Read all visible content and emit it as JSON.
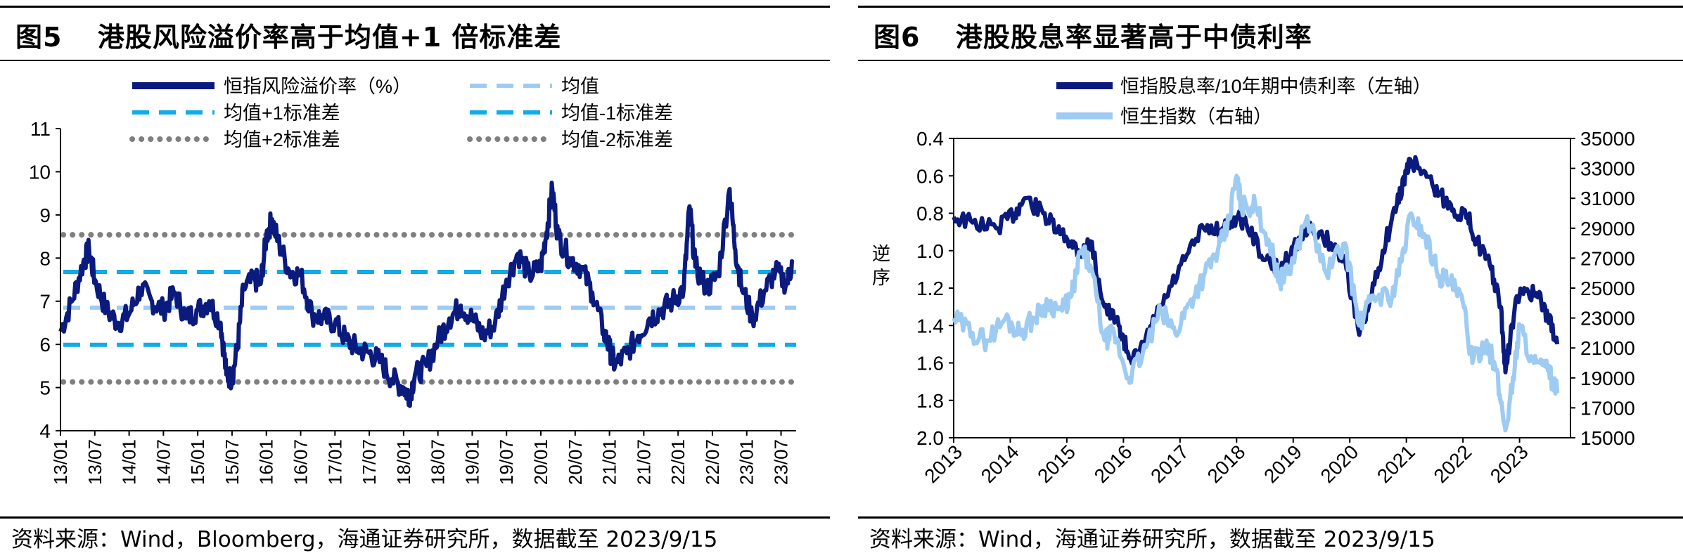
{
  "left": {
    "title_num": "图5",
    "title_text": "港股风险溢价率高于均值+1 倍标准差",
    "source": "资料来源：Wind，Bloomberg，海通证券研究所，数据截至 2023/9/15"
  },
  "right": {
    "title_num": "图6",
    "title_text": "港股股息率显著高于中债利率",
    "source": "资料来源：Wind，海通证券研究所，数据截至 2023/9/15"
  },
  "colors": {
    "dark_navy": "#0a1a7d",
    "light_blue": "#9ecbf2",
    "cyan": "#12abe5",
    "gray_dot": "#7f7f7f"
  },
  "chart_data": [
    {
      "type": "line",
      "xlabel": "",
      "ylabel": "",
      "ylim": [
        4,
        11
      ],
      "yticks": [
        "4",
        "5",
        "6",
        "7",
        "8",
        "9",
        "10",
        "11"
      ],
      "xticks": [
        "13/01",
        "13/07",
        "14/01",
        "14/07",
        "15/01",
        "15/07",
        "16/01",
        "16/07",
        "17/01",
        "17/07",
        "18/01",
        "18/07",
        "19/01",
        "19/07",
        "20/01",
        "20/07",
        "21/01",
        "21/07",
        "22/01",
        "22/07",
        "23/01",
        "23/07"
      ],
      "grid": false,
      "legend_position": "top",
      "series": [
        {
          "name": "恒指风险溢价率（%）",
          "style": "solid",
          "points": [
            [
              "2013-01",
              6.3
            ],
            [
              "2013-03",
              7.0
            ],
            [
              "2013-05",
              7.9
            ],
            [
              "2013-06",
              8.2
            ],
            [
              "2013-07",
              7.5
            ],
            [
              "2013-09",
              6.8
            ],
            [
              "2013-11",
              6.5
            ],
            [
              "2014-01",
              6.7
            ],
            [
              "2014-03",
              7.3
            ],
            [
              "2014-05",
              7.0
            ],
            [
              "2014-07",
              6.8
            ],
            [
              "2014-09",
              7.2
            ],
            [
              "2014-11",
              6.6
            ],
            [
              "2015-01",
              6.8
            ],
            [
              "2015-03",
              7.0
            ],
            [
              "2015-05",
              6.5
            ],
            [
              "2015-06",
              5.3
            ],
            [
              "2015-07",
              5.2
            ],
            [
              "2015-08",
              6.0
            ],
            [
              "2015-09",
              7.3
            ],
            [
              "2015-11",
              7.5
            ],
            [
              "2015-12",
              7.4
            ],
            [
              "2016-01",
              8.5
            ],
            [
              "2016-02",
              8.9
            ],
            [
              "2016-03",
              8.4
            ],
            [
              "2016-05",
              7.7
            ],
            [
              "2016-07",
              7.6
            ],
            [
              "2016-09",
              6.7
            ],
            [
              "2016-11",
              6.6
            ],
            [
              "2017-01",
              6.5
            ],
            [
              "2017-03",
              6.1
            ],
            [
              "2017-05",
              5.9
            ],
            [
              "2017-07",
              5.8
            ],
            [
              "2017-09",
              5.6
            ],
            [
              "2017-11",
              5.2
            ],
            [
              "2018-01",
              5.0
            ],
            [
              "2018-02",
              4.8
            ],
            [
              "2018-03",
              5.3
            ],
            [
              "2018-05",
              5.5
            ],
            [
              "2018-07",
              6.1
            ],
            [
              "2018-09",
              6.6
            ],
            [
              "2018-11",
              6.9
            ],
            [
              "2019-01",
              6.6
            ],
            [
              "2019-03",
              6.2
            ],
            [
              "2019-05",
              6.5
            ],
            [
              "2019-07",
              7.5
            ],
            [
              "2019-09",
              8.1
            ],
            [
              "2019-11",
              7.6
            ],
            [
              "2020-01",
              7.8
            ],
            [
              "2020-02",
              8.6
            ],
            [
              "2020-03",
              9.6
            ],
            [
              "2020-04",
              8.5
            ],
            [
              "2020-06",
              8.0
            ],
            [
              "2020-08",
              7.8
            ],
            [
              "2020-10",
              7.2
            ],
            [
              "2020-12",
              6.3
            ],
            [
              "2021-01",
              5.9
            ],
            [
              "2021-02",
              5.5
            ],
            [
              "2021-04",
              5.8
            ],
            [
              "2021-06",
              6.2
            ],
            [
              "2021-08",
              6.6
            ],
            [
              "2021-10",
              6.8
            ],
            [
              "2021-12",
              7.0
            ],
            [
              "2022-02",
              7.3
            ],
            [
              "2022-03",
              9.2
            ],
            [
              "2022-04",
              7.8
            ],
            [
              "2022-06",
              7.3
            ],
            [
              "2022-08",
              7.6
            ],
            [
              "2022-10",
              9.6
            ],
            [
              "2022-11",
              8.2
            ],
            [
              "2022-12",
              7.4
            ],
            [
              "2023-02",
              6.6
            ],
            [
              "2023-04",
              7.2
            ],
            [
              "2023-06",
              7.7
            ],
            [
              "2023-08",
              7.4
            ],
            [
              "2023-09",
              7.9
            ]
          ]
        },
        {
          "name": "均值",
          "style": "dashed",
          "value": 6.85
        },
        {
          "name": "均值+1标准差",
          "style": "dashed",
          "value": 7.68
        },
        {
          "name": "均值-1标准差",
          "style": "dashed",
          "value": 5.99
        },
        {
          "name": "均值+2标准差",
          "style": "dotted",
          "value": 8.54
        },
        {
          "name": "均值-2标准差",
          "style": "dotted",
          "value": 5.13
        }
      ]
    },
    {
      "type": "line",
      "xlabel": "",
      "ylabel": "逆序",
      "y_left_reversed": true,
      "ylim_left": [
        0.4,
        2.0
      ],
      "ylim_right": [
        15000,
        35000
      ],
      "yticks_left": [
        "0.4",
        "0.6",
        "0.8",
        "1.0",
        "1.2",
        "1.4",
        "1.6",
        "1.8",
        "2.0"
      ],
      "yticks_right": [
        "15000",
        "17000",
        "19000",
        "21000",
        "23000",
        "25000",
        "27000",
        "29000",
        "31000",
        "33000",
        "35000"
      ],
      "xticks": [
        "2013",
        "2014",
        "2015",
        "2016",
        "2017",
        "2018",
        "2019",
        "2020",
        "2021",
        "2022",
        "2023"
      ],
      "grid": false,
      "legend_position": "top",
      "series": [
        {
          "name": "恒指股息率/10年期中债利率（左轴）",
          "axis": "left",
          "points": [
            [
              "2013-01",
              0.82
            ],
            [
              "2013-05",
              0.85
            ],
            [
              "2013-10",
              0.88
            ],
            [
              "2014-02",
              0.8
            ],
            [
              "2014-04",
              0.72
            ],
            [
              "2014-08",
              0.8
            ],
            [
              "2014-11",
              0.9
            ],
            [
              "2015-02",
              0.95
            ],
            [
              "2015-04",
              1.02
            ],
            [
              "2015-06",
              0.95
            ],
            [
              "2015-09",
              1.3
            ],
            [
              "2015-12",
              1.4
            ],
            [
              "2016-02",
              1.55
            ],
            [
              "2016-04",
              1.58
            ],
            [
              "2016-07",
              1.4
            ],
            [
              "2016-10",
              1.25
            ],
            [
              "2017-02",
              1.05
            ],
            [
              "2017-06",
              0.88
            ],
            [
              "2017-10",
              0.88
            ],
            [
              "2018-01",
              0.82
            ],
            [
              "2018-03",
              0.85
            ],
            [
              "2018-07",
              1.05
            ],
            [
              "2018-10",
              1.1
            ],
            [
              "2019-01",
              0.98
            ],
            [
              "2019-05",
              0.88
            ],
            [
              "2019-09",
              0.96
            ],
            [
              "2019-12",
              1.05
            ],
            [
              "2020-03",
              1.45
            ],
            [
              "2020-05",
              1.3
            ],
            [
              "2020-08",
              1.0
            ],
            [
              "2020-11",
              0.75
            ],
            [
              "2021-01",
              0.58
            ],
            [
              "2021-02",
              0.52
            ],
            [
              "2021-05",
              0.58
            ],
            [
              "2021-08",
              0.7
            ],
            [
              "2021-11",
              0.78
            ],
            [
              "2022-02",
              0.82
            ],
            [
              "2022-04",
              0.95
            ],
            [
              "2022-07",
              1.1
            ],
            [
              "2022-09",
              1.3
            ],
            [
              "2022-10",
              1.65
            ],
            [
              "2022-12",
              1.3
            ],
            [
              "2023-02",
              1.2
            ],
            [
              "2023-05",
              1.25
            ],
            [
              "2023-07",
              1.35
            ],
            [
              "2023-09",
              1.5
            ]
          ]
        },
        {
          "name": "恒生指数（右轴）",
          "axis": "right",
          "points": [
            [
              "2013-01",
              23000
            ],
            [
              "2013-05",
              22000
            ],
            [
              "2013-08",
              21500
            ],
            [
              "2013-12",
              23000
            ],
            [
              "2014-03",
              22000
            ],
            [
              "2014-06",
              23000
            ],
            [
              "2014-09",
              24000
            ],
            [
              "2014-12",
              23500
            ],
            [
              "2015-02",
              24500
            ],
            [
              "2015-04",
              27500
            ],
            [
              "2015-06",
              26500
            ],
            [
              "2015-09",
              21500
            ],
            [
              "2015-11",
              22000
            ],
            [
              "2016-02",
              19000
            ],
            [
              "2016-05",
              20500
            ],
            [
              "2016-09",
              23500
            ],
            [
              "2016-12",
              22000
            ],
            [
              "2017-03",
              24000
            ],
            [
              "2017-06",
              25800
            ],
            [
              "2017-09",
              27500
            ],
            [
              "2017-11",
              29000
            ],
            [
              "2018-01",
              32500
            ],
            [
              "2018-02",
              30500
            ],
            [
              "2018-05",
              30500
            ],
            [
              "2018-08",
              28000
            ],
            [
              "2018-10",
              25500
            ],
            [
              "2018-12",
              26000
            ],
            [
              "2019-04",
              29800
            ],
            [
              "2019-08",
              26000
            ],
            [
              "2019-12",
              28000
            ],
            [
              "2020-03",
              22500
            ],
            [
              "2020-06",
              24500
            ],
            [
              "2020-10",
              24500
            ],
            [
              "2020-12",
              26800
            ],
            [
              "2021-02",
              30000
            ],
            [
              "2021-05",
              28500
            ],
            [
              "2021-08",
              25800
            ],
            [
              "2021-10",
              25500
            ],
            [
              "2022-01",
              24000
            ],
            [
              "2022-03",
              20000
            ],
            [
              "2022-06",
              21500
            ],
            [
              "2022-08",
              19500
            ],
            [
              "2022-10",
              15500
            ],
            [
              "2022-12",
              19800
            ],
            [
              "2023-01",
              22500
            ],
            [
              "2023-04",
              20000
            ],
            [
              "2023-07",
              19500
            ],
            [
              "2023-09",
              18000
            ]
          ]
        }
      ]
    }
  ]
}
